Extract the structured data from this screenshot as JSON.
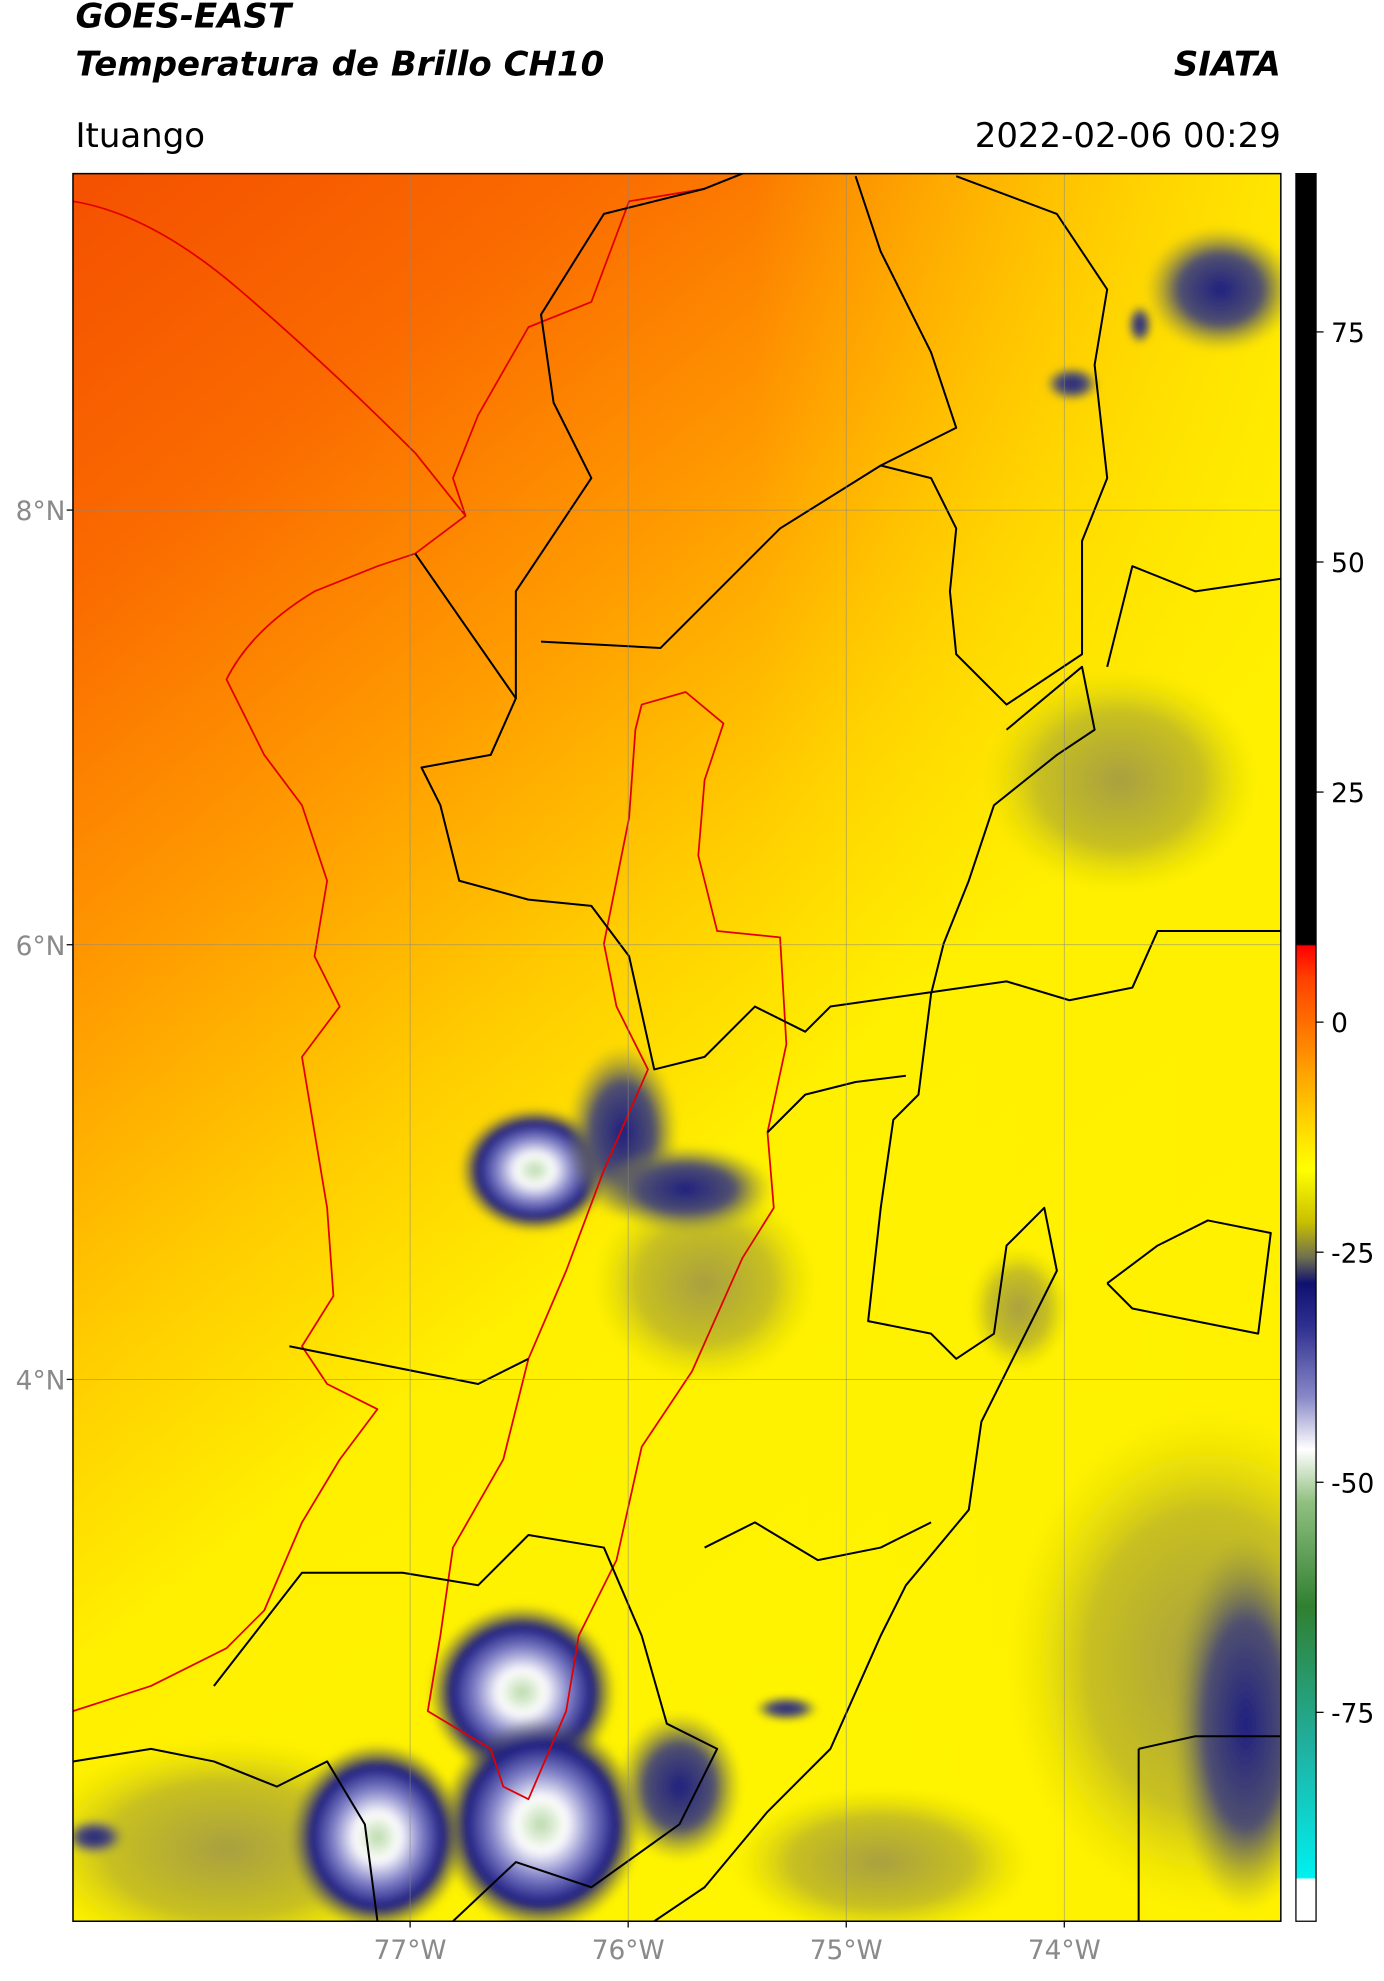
{
  "map": {
    "title": "GOES-EAST",
    "subtitle": "Temperatura de Brillo CH10",
    "credit": "SIATA",
    "location": "Ituango",
    "datetime": "2022-02-06 00:29",
    "xlim": [
      -78.546,
      -73.007
    ],
    "ylim": [
      1.507,
      9.548
    ],
    "xticks": [
      {
        "value": -77,
        "label": "77°W"
      },
      {
        "value": -76,
        "label": "76°W"
      },
      {
        "value": -75,
        "label": "75°W"
      },
      {
        "value": -74,
        "label": "74°W"
      }
    ],
    "yticks": [
      {
        "value": 8,
        "label": "8°N"
      },
      {
        "value": 6,
        "label": "6°N"
      },
      {
        "value": 4,
        "label": "4°N"
      }
    ],
    "grid": true,
    "colorbar": {
      "lim": [
        -97.7,
        92.2
      ],
      "ticks": [
        75,
        50,
        25,
        0,
        -25,
        -50,
        -75
      ]
    }
  }
}
